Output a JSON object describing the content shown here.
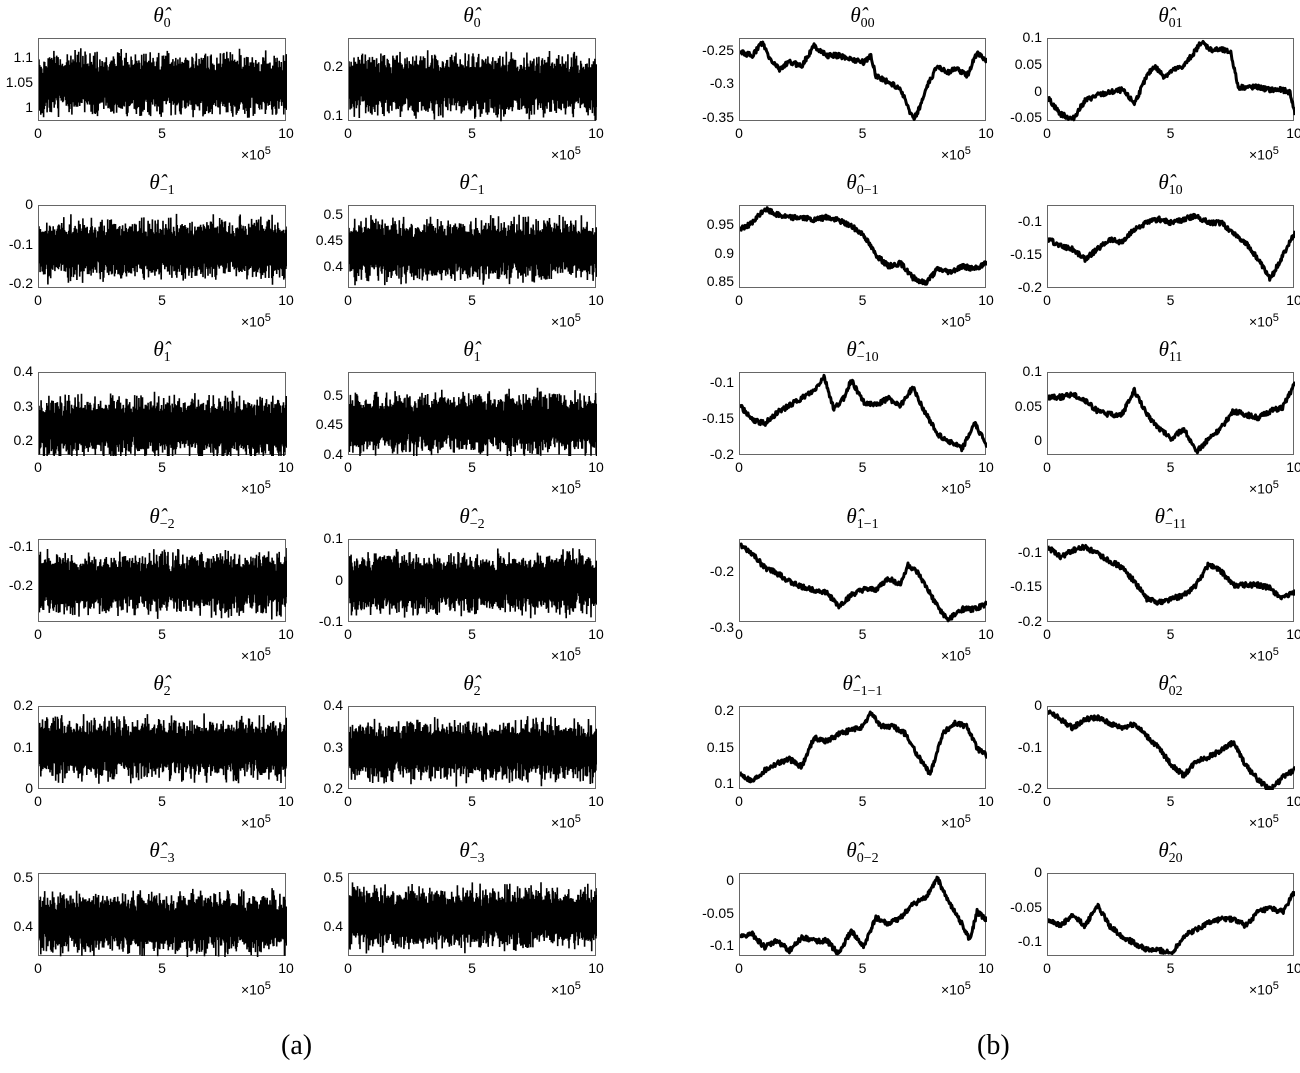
{
  "chart_data": [
    {
      "panel": "a",
      "col": 0,
      "row": 0,
      "type": "line",
      "title": "θ̂_0",
      "x_range": [
        0,
        1000000
      ],
      "x_ticks": [
        "0",
        "5",
        "10"
      ],
      "x_multiplier": "×10^5",
      "y_ticks": [
        "1",
        "1.05",
        "1.1"
      ],
      "ylim": [
        0.975,
        1.14
      ],
      "mean": 1.05,
      "style": "noisy"
    },
    {
      "panel": "a",
      "col": 1,
      "row": 0,
      "type": "line",
      "title": "θ̂_0",
      "x_range": [
        0,
        1000000
      ],
      "x_ticks": [
        "0",
        "5",
        "10"
      ],
      "x_multiplier": "×10^5",
      "y_ticks": [
        "0.1",
        "0.2"
      ],
      "ylim": [
        0.09,
        0.26
      ],
      "mean": 0.165,
      "style": "noisy"
    },
    {
      "panel": "a",
      "col": 0,
      "row": 1,
      "type": "line",
      "title": "θ̂_-1",
      "x_range": [
        0,
        1000000
      ],
      "x_ticks": [
        "0",
        "5",
        "10"
      ],
      "x_multiplier": "×10^5",
      "y_ticks": [
        "-0.2",
        "-0.1",
        "0"
      ],
      "ylim": [
        -0.21,
        0.0
      ],
      "mean": -0.11,
      "style": "noisy"
    },
    {
      "panel": "a",
      "col": 1,
      "row": 1,
      "type": "line",
      "title": "θ̂_-1",
      "x_range": [
        0,
        1000000
      ],
      "x_ticks": [
        "0",
        "5",
        "10"
      ],
      "x_multiplier": "×10^5",
      "y_ticks": [
        "0.4",
        "0.45",
        "0.5"
      ],
      "ylim": [
        0.36,
        0.52
      ],
      "mean": 0.435,
      "style": "noisy"
    },
    {
      "panel": "a",
      "col": 0,
      "row": 2,
      "type": "line",
      "title": "θ̂_1",
      "x_range": [
        0,
        1000000
      ],
      "x_ticks": [
        "0",
        "5",
        "10"
      ],
      "x_multiplier": "×10^5",
      "y_ticks": [
        "0.2",
        "0.3",
        "0.4"
      ],
      "ylim": [
        0.16,
        0.4
      ],
      "mean": 0.245,
      "style": "noisy"
    },
    {
      "panel": "a",
      "col": 1,
      "row": 2,
      "type": "line",
      "title": "θ̂_1",
      "x_range": [
        0,
        1000000
      ],
      "x_ticks": [
        "0",
        "5",
        "10"
      ],
      "x_multiplier": "×10^5",
      "y_ticks": [
        "0.4",
        "0.45",
        "0.5"
      ],
      "ylim": [
        0.4,
        0.54
      ],
      "mean": 0.455,
      "style": "noisy"
    },
    {
      "panel": "a",
      "col": 0,
      "row": 3,
      "type": "line",
      "title": "θ̂_-2",
      "x_range": [
        0,
        1000000
      ],
      "x_ticks": [
        "0",
        "5",
        "10"
      ],
      "x_multiplier": "×10^5",
      "y_ticks": [
        "-0.2",
        "-0.1"
      ],
      "ylim": [
        -0.29,
        -0.08
      ],
      "mean": -0.19,
      "style": "noisy"
    },
    {
      "panel": "a",
      "col": 1,
      "row": 3,
      "type": "line",
      "title": "θ̂_-2",
      "x_range": [
        0,
        1000000
      ],
      "x_ticks": [
        "0",
        "5",
        "10"
      ],
      "x_multiplier": "×10^5",
      "y_ticks": [
        "-0.1",
        "0",
        "0.1"
      ],
      "ylim": [
        -0.1,
        0.1
      ],
      "mean": -0.005,
      "style": "noisy"
    },
    {
      "panel": "a",
      "col": 0,
      "row": 4,
      "type": "line",
      "title": "θ̂_2",
      "x_range": [
        0,
        1000000
      ],
      "x_ticks": [
        "0",
        "5",
        "10"
      ],
      "x_multiplier": "×10^5",
      "y_ticks": [
        "0",
        "0.1",
        "0.2"
      ],
      "ylim": [
        0,
        0.2
      ],
      "mean": 0.1,
      "style": "noisy"
    },
    {
      "panel": "a",
      "col": 1,
      "row": 4,
      "type": "line",
      "title": "θ̂_2",
      "x_range": [
        0,
        1000000
      ],
      "x_ticks": [
        "0",
        "5",
        "10"
      ],
      "x_multiplier": "×10^5",
      "y_ticks": [
        "0.2",
        "0.3",
        "0.4"
      ],
      "ylim": [
        0.2,
        0.4
      ],
      "mean": 0.295,
      "style": "noisy"
    },
    {
      "panel": "a",
      "col": 0,
      "row": 5,
      "type": "line",
      "title": "θ̂_-3",
      "x_range": [
        0,
        1000000
      ],
      "x_ticks": [
        "0",
        "5",
        "10"
      ],
      "x_multiplier": "×10^5",
      "y_ticks": [
        "0.4",
        "0.5"
      ],
      "ylim": [
        0.34,
        0.51
      ],
      "mean": 0.41,
      "style": "noisy"
    },
    {
      "panel": "a",
      "col": 1,
      "row": 5,
      "type": "line",
      "title": "θ̂_-3",
      "x_range": [
        0,
        1000000
      ],
      "x_ticks": [
        "0",
        "5",
        "10"
      ],
      "x_multiplier": "×10^5",
      "y_ticks": [
        "0.4",
        "0.5"
      ],
      "ylim": [
        0.34,
        0.51
      ],
      "mean": 0.42,
      "style": "noisy"
    },
    {
      "panel": "b",
      "col": 0,
      "row": 0,
      "type": "line",
      "title": "θ̂_00",
      "x_range": [
        0,
        1000000
      ],
      "x_ticks": [
        "0",
        "5",
        "10"
      ],
      "x_multiplier": "×10^5",
      "y_ticks": [
        "-0.35",
        "-0.3",
        "-0.25"
      ],
      "ylim": [
        -0.355,
        -0.23
      ],
      "style": "walk",
      "x": [
        0,
        0.5,
        0.9,
        1.2,
        1.6,
        2,
        2.5,
        3,
        3.5,
        4,
        4.5,
        5,
        5.3,
        5.5,
        6,
        6.5,
        7,
        7.2,
        7.6,
        8,
        8.4,
        8.8,
        9.2,
        9.6,
        10
      ],
      "y": [
        -0.25,
        -0.255,
        -0.235,
        -0.26,
        -0.275,
        -0.265,
        -0.27,
        -0.24,
        -0.255,
        -0.255,
        -0.26,
        -0.265,
        -0.255,
        -0.285,
        -0.295,
        -0.305,
        -0.35,
        -0.34,
        -0.3,
        -0.27,
        -0.28,
        -0.275,
        -0.285,
        -0.25,
        -0.265
      ]
    },
    {
      "panel": "b",
      "col": 1,
      "row": 0,
      "type": "line",
      "title": "θ̂_01",
      "x_range": [
        0,
        1000000
      ],
      "x_ticks": [
        "0",
        "5",
        "10"
      ],
      "x_multiplier": "×10^5",
      "y_ticks": [
        "-0.05",
        "0",
        "0.05",
        "0.1"
      ],
      "ylim": [
        -0.055,
        0.1
      ],
      "style": "walk",
      "x": [
        0,
        0.5,
        1,
        1.5,
        2,
        2.5,
        3,
        3.5,
        4,
        4.3,
        4.7,
        5,
        5.5,
        6,
        6.2,
        6.6,
        7,
        7.4,
        7.7,
        8,
        8.5,
        9,
        9.5,
        9.8,
        10
      ],
      "y": [
        -0.01,
        -0.04,
        -0.05,
        -0.015,
        -0.005,
        0,
        0.005,
        -0.02,
        0.03,
        0.05,
        0.03,
        0.04,
        0.05,
        0.08,
        0.095,
        0.08,
        0.08,
        0.075,
        0.01,
        0.01,
        0.01,
        0.005,
        0.005,
        0,
        -0.04
      ]
    },
    {
      "panel": "b",
      "col": 0,
      "row": 1,
      "type": "line",
      "title": "θ̂_0-1",
      "x_range": [
        0,
        1000000
      ],
      "x_ticks": [
        "0",
        "5",
        "10"
      ],
      "x_multiplier": "×10^5",
      "y_ticks": [
        "0.85",
        "0.9",
        "0.95"
      ],
      "ylim": [
        0.84,
        0.985
      ],
      "style": "walk",
      "x": [
        0,
        0.5,
        1,
        1.5,
        2,
        2.5,
        3,
        3.5,
        4,
        4.5,
        5,
        5.5,
        6,
        6.5,
        7,
        7.5,
        8,
        8.5,
        9,
        9.5,
        10
      ],
      "y": [
        0.945,
        0.955,
        0.98,
        0.97,
        0.965,
        0.965,
        0.96,
        0.965,
        0.96,
        0.95,
        0.935,
        0.9,
        0.88,
        0.885,
        0.86,
        0.85,
        0.875,
        0.87,
        0.88,
        0.875,
        0.885
      ]
    },
    {
      "panel": "b",
      "col": 1,
      "row": 1,
      "type": "line",
      "title": "θ̂_10",
      "x_range": [
        0,
        1000000
      ],
      "x_ticks": [
        "0",
        "5",
        "10"
      ],
      "x_multiplier": "×10^5",
      "y_ticks": [
        "-0.2",
        "-0.15",
        "-0.1"
      ],
      "ylim": [
        -0.2,
        -0.075
      ],
      "style": "walk",
      "x": [
        0,
        0.5,
        1,
        1.5,
        2,
        2.5,
        3,
        3.5,
        4,
        4.5,
        5,
        5.5,
        6,
        6.5,
        7,
        7.5,
        8,
        8.5,
        9,
        9.5,
        10
      ],
      "y": [
        -0.125,
        -0.135,
        -0.14,
        -0.155,
        -0.14,
        -0.125,
        -0.13,
        -0.11,
        -0.1,
        -0.095,
        -0.1,
        -0.095,
        -0.09,
        -0.1,
        -0.1,
        -0.115,
        -0.13,
        -0.155,
        -0.185,
        -0.15,
        -0.115
      ]
    },
    {
      "panel": "b",
      "col": 0,
      "row": 2,
      "type": "line",
      "title": "θ̂_-10",
      "x_range": [
        0,
        1000000
      ],
      "x_ticks": [
        "0",
        "5",
        "10"
      ],
      "x_multiplier": "×10^5",
      "y_ticks": [
        "-0.2",
        "-0.15",
        "-0.1"
      ],
      "ylim": [
        -0.2,
        -0.085
      ],
      "style": "walk",
      "x": [
        0,
        0.5,
        1,
        1.5,
        2,
        2.5,
        3,
        3.4,
        3.8,
        4.2,
        4.5,
        5,
        5.5,
        6,
        6.5,
        7,
        7.5,
        8,
        8.5,
        9,
        9.5,
        10
      ],
      "y": [
        -0.13,
        -0.15,
        -0.155,
        -0.14,
        -0.13,
        -0.12,
        -0.11,
        -0.09,
        -0.135,
        -0.12,
        -0.095,
        -0.125,
        -0.13,
        -0.12,
        -0.13,
        -0.105,
        -0.14,
        -0.17,
        -0.18,
        -0.19,
        -0.155,
        -0.185
      ]
    },
    {
      "panel": "b",
      "col": 1,
      "row": 2,
      "type": "line",
      "title": "θ̂_11",
      "x_range": [
        0,
        1000000
      ],
      "x_ticks": [
        "0",
        "5",
        "10"
      ],
      "x_multiplier": "×10^5",
      "y_ticks": [
        "0",
        "0.05",
        "0.1"
      ],
      "ylim": [
        -0.02,
        0.1
      ],
      "style": "walk",
      "x": [
        0,
        0.5,
        1,
        1.5,
        2,
        2.5,
        3,
        3.5,
        4,
        4.5,
        5,
        5.5,
        6,
        6.5,
        7,
        7.5,
        8,
        8.5,
        9,
        9.5,
        10
      ],
      "y": [
        0.065,
        0.065,
        0.07,
        0.06,
        0.045,
        0.04,
        0.04,
        0.075,
        0.04,
        0.02,
        0.005,
        0.02,
        -0.015,
        0.005,
        0.02,
        0.045,
        0.04,
        0.035,
        0.045,
        0.05,
        0.085
      ]
    },
    {
      "panel": "b",
      "col": 0,
      "row": 3,
      "type": "line",
      "title": "θ̂_1-1",
      "x_range": [
        0,
        1000000
      ],
      "x_ticks": [
        "0",
        "5",
        "10"
      ],
      "x_multiplier": "×10^5",
      "y_ticks": [
        "-0.3",
        "-0.2"
      ],
      "ylim": [
        -0.29,
        -0.14
      ],
      "style": "walk",
      "x": [
        0,
        0.5,
        1,
        1.5,
        2,
        2.5,
        3,
        3.5,
        4,
        4.5,
        5,
        5.5,
        6,
        6.5,
        6.8,
        7.2,
        7.6,
        8,
        8.4,
        9,
        9.5,
        10
      ],
      "y": [
        -0.15,
        -0.165,
        -0.19,
        -0.2,
        -0.215,
        -0.225,
        -0.23,
        -0.235,
        -0.26,
        -0.24,
        -0.23,
        -0.23,
        -0.21,
        -0.22,
        -0.185,
        -0.2,
        -0.23,
        -0.26,
        -0.285,
        -0.265,
        -0.265,
        -0.255
      ]
    },
    {
      "panel": "b",
      "col": 1,
      "row": 3,
      "type": "line",
      "title": "θ̂_-11",
      "x_range": [
        0,
        1000000
      ],
      "x_ticks": [
        "0",
        "5",
        "10"
      ],
      "x_multiplier": "×10^5",
      "y_ticks": [
        "-0.2",
        "-0.15",
        "-0.1"
      ],
      "ylim": [
        -0.2,
        -0.08
      ],
      "style": "walk",
      "x": [
        0,
        0.5,
        1,
        1.5,
        2,
        2.5,
        3,
        3.5,
        4,
        4.5,
        5,
        5.5,
        6,
        6.5,
        7,
        7.5,
        8,
        8.5,
        9,
        9.5,
        10
      ],
      "y": [
        -0.09,
        -0.105,
        -0.095,
        -0.09,
        -0.1,
        -0.11,
        -0.12,
        -0.14,
        -0.165,
        -0.17,
        -0.165,
        -0.16,
        -0.145,
        -0.115,
        -0.125,
        -0.145,
        -0.145,
        -0.145,
        -0.15,
        -0.165,
        -0.155
      ]
    },
    {
      "panel": "b",
      "col": 0,
      "row": 4,
      "type": "line",
      "title": "θ̂_-1-1",
      "x_range": [
        0,
        1000000
      ],
      "x_ticks": [
        "0",
        "5",
        "10"
      ],
      "x_multiplier": "×10^5",
      "y_ticks": [
        "0.1",
        "0.15",
        "0.2"
      ],
      "ylim": [
        0.093,
        0.207
      ],
      "style": "walk",
      "x": [
        0,
        0.5,
        1,
        1.5,
        2,
        2.5,
        3,
        3.5,
        4,
        4.5,
        5,
        5.3,
        5.7,
        6.2,
        6.7,
        7.2,
        7.7,
        8.2,
        8.7,
        9.2,
        9.6,
        10
      ],
      "y": [
        0.115,
        0.105,
        0.12,
        0.13,
        0.135,
        0.125,
        0.165,
        0.16,
        0.17,
        0.175,
        0.18,
        0.2,
        0.18,
        0.18,
        0.17,
        0.14,
        0.115,
        0.17,
        0.185,
        0.18,
        0.15,
        0.14
      ]
    },
    {
      "panel": "b",
      "col": 1,
      "row": 4,
      "type": "line",
      "title": "θ̂_02",
      "x_range": [
        0,
        1000000
      ],
      "x_ticks": [
        "0",
        "5",
        "10"
      ],
      "x_multiplier": "×10^5",
      "y_ticks": [
        "-0.2",
        "-0.1",
        "0"
      ],
      "ylim": [
        -0.2,
        0.0
      ],
      "style": "walk",
      "x": [
        0,
        0.5,
        1,
        1.5,
        2,
        2.5,
        3,
        3.5,
        4,
        4.5,
        5,
        5.5,
        6,
        6.5,
        7,
        7.5,
        8,
        8.5,
        9,
        9.5,
        10
      ],
      "y": [
        -0.01,
        -0.03,
        -0.05,
        -0.03,
        -0.025,
        -0.04,
        -0.05,
        -0.04,
        -0.07,
        -0.1,
        -0.14,
        -0.165,
        -0.13,
        -0.12,
        -0.105,
        -0.085,
        -0.14,
        -0.175,
        -0.2,
        -0.17,
        -0.15
      ]
    },
    {
      "panel": "b",
      "col": 0,
      "row": 5,
      "type": "line",
      "title": "θ̂_0-2",
      "x_range": [
        0,
        1000000
      ],
      "x_ticks": [
        "0",
        "5",
        "10"
      ],
      "x_multiplier": "×10^5",
      "y_ticks": [
        "-0.1",
        "-0.05",
        "0"
      ],
      "ylim": [
        -0.115,
        0.012
      ],
      "style": "walk",
      "x": [
        0,
        0.5,
        1,
        1.5,
        2,
        2.5,
        3,
        3.5,
        4,
        4.5,
        5,
        5.5,
        6,
        6.5,
        7,
        7.5,
        8,
        8.5,
        9,
        9.3,
        9.6,
        10
      ],
      "y": [
        -0.085,
        -0.08,
        -0.1,
        -0.09,
        -0.105,
        -0.085,
        -0.09,
        -0.09,
        -0.11,
        -0.075,
        -0.1,
        -0.055,
        -0.065,
        -0.055,
        -0.035,
        -0.025,
        0.005,
        -0.035,
        -0.065,
        -0.09,
        -0.045,
        -0.06
      ]
    },
    {
      "panel": "b",
      "col": 1,
      "row": 5,
      "type": "line",
      "title": "θ̂_20",
      "x_range": [
        0,
        1000000
      ],
      "x_ticks": [
        "0",
        "5",
        "10"
      ],
      "x_multiplier": "×10^5",
      "y_ticks": [
        "-0.1",
        "-0.05",
        "0"
      ],
      "ylim": [
        -0.12,
        0.0
      ],
      "style": "walk",
      "x": [
        0,
        0.5,
        1,
        1.5,
        2,
        2.5,
        3,
        3.5,
        4,
        4.5,
        5,
        5.5,
        6,
        6.5,
        7,
        7.5,
        8,
        8.5,
        9,
        9.5,
        10
      ],
      "y": [
        -0.065,
        -0.075,
        -0.06,
        -0.075,
        -0.045,
        -0.075,
        -0.09,
        -0.1,
        -0.11,
        -0.11,
        -0.115,
        -0.09,
        -0.08,
        -0.07,
        -0.065,
        -0.065,
        -0.075,
        -0.055,
        -0.05,
        -0.055,
        -0.025
      ]
    }
  ],
  "captions": {
    "a": "(a)",
    "b": "(b)"
  }
}
